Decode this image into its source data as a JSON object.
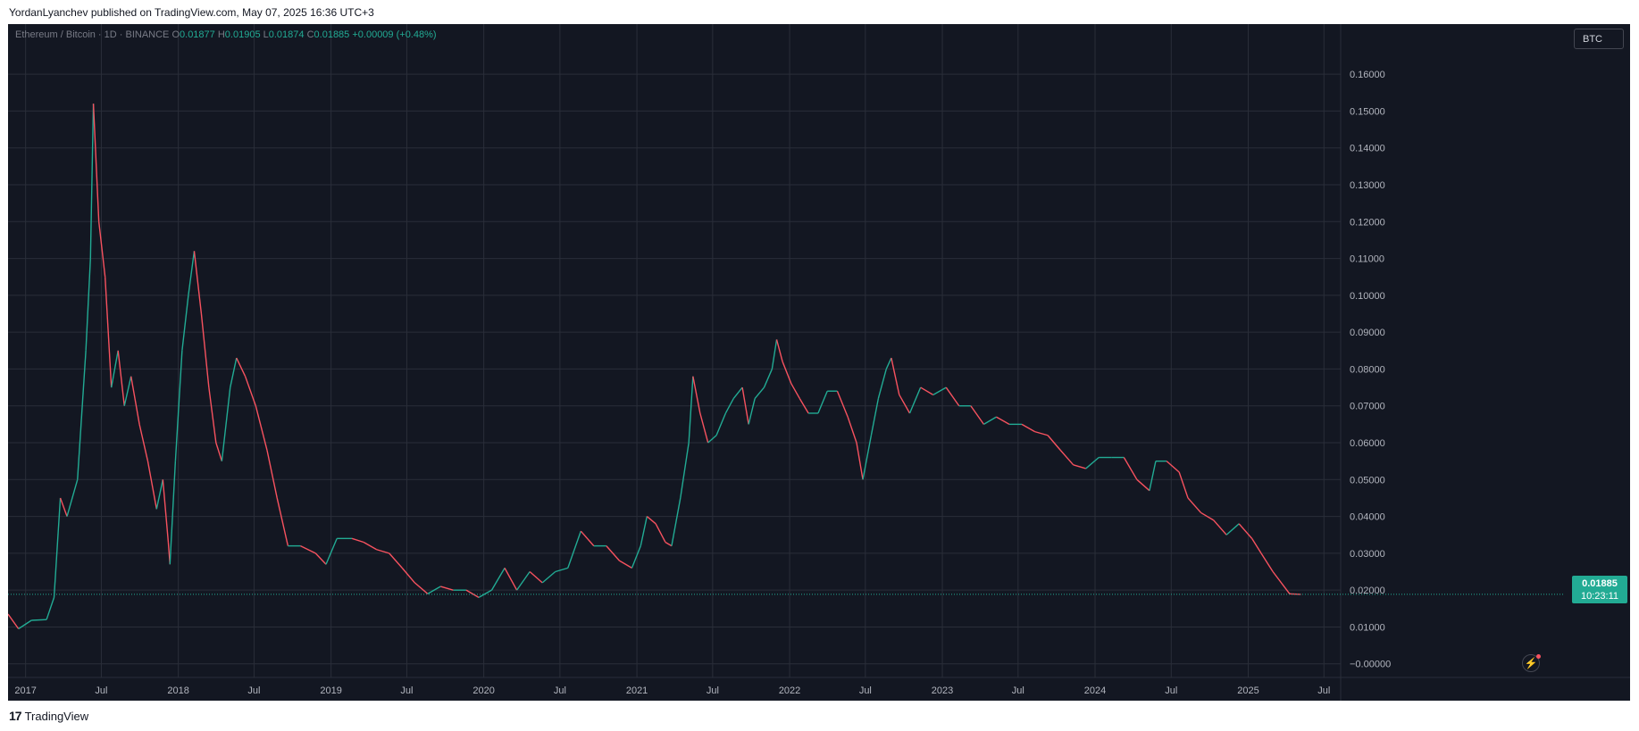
{
  "header": {
    "text": "YordanLyanchev published on TradingView.com, May 07, 2025 16:36 UTC+3"
  },
  "footer": {
    "logo": "17",
    "brand": "TradingView"
  },
  "legend": {
    "symbol": "Ethereum / Bitcoin · 1D · BINANCE",
    "o_label": "O",
    "o_value": "0.01877",
    "h_label": "H",
    "h_value": "0.01905",
    "l_label": "L",
    "l_value": "0.01874",
    "c_label": "C",
    "c_value": "0.01885",
    "change": "+0.00009 (+0.48%)"
  },
  "currency_badge": "BTC",
  "last_price": {
    "value": "0.01885",
    "countdown": "10:23:11"
  },
  "colors": {
    "background": "#131722",
    "grid": "#2a2e39",
    "axis_text": "#b2b5be",
    "up": "#22ab94",
    "down": "#f7525f",
    "last_price": "#22ab94"
  },
  "icons": {
    "bolt": "lightning-bolt-icon",
    "logo": "tradingview-logo-icon"
  },
  "chart_data": {
    "type": "line",
    "title": "Ethereum / Bitcoin · 1D · BINANCE",
    "x_tick_labels": [
      "2017",
      "Jul",
      "2018",
      "Jul",
      "2019",
      "Jul",
      "2020",
      "Jul",
      "2021",
      "Jul",
      "2022",
      "Jul",
      "2023",
      "Jul",
      "2024",
      "Jul",
      "2025",
      "Jul"
    ],
    "x_tick_dates": [
      "2017-01-01",
      "2017-07-01",
      "2018-01-01",
      "2018-07-01",
      "2019-01-01",
      "2019-07-01",
      "2020-01-01",
      "2020-07-01",
      "2021-01-01",
      "2021-07-01",
      "2022-01-01",
      "2022-07-01",
      "2023-01-01",
      "2023-07-01",
      "2024-01-01",
      "2024-07-01",
      "2025-01-01",
      "2025-07-01"
    ],
    "y_tick_labels": [
      "0.16000",
      "0.15000",
      "0.14000",
      "0.13000",
      "0.12000",
      "0.11000",
      "0.10000",
      "0.09000",
      "0.08000",
      "0.07000",
      "0.06000",
      "0.05000",
      "0.04000",
      "0.03000",
      "0.02000",
      "0.01000",
      "0.00000"
    ],
    "y_tick_values": [
      0.16,
      0.15,
      0.14,
      0.13,
      0.12,
      0.11,
      0.1,
      0.09,
      0.08,
      0.07,
      0.06,
      0.05,
      0.04,
      0.03,
      0.02,
      0.01,
      0.0
    ],
    "y_tick_prefix_last": "−",
    "ylim": [
      -0.0037,
      0.1736
    ],
    "xlim": [
      "2016-11-20",
      "2025-08-10"
    ],
    "grid": true,
    "series": [
      {
        "name": "ETHBTC",
        "points": [
          [
            "2016-11-20",
            0.0135
          ],
          [
            "2016-12-15",
            0.0095
          ],
          [
            "2017-01-15",
            0.0118
          ],
          [
            "2017-02-20",
            0.012
          ],
          [
            "2017-03-10",
            0.018
          ],
          [
            "2017-03-25",
            0.045
          ],
          [
            "2017-04-10",
            0.04
          ],
          [
            "2017-05-05",
            0.05
          ],
          [
            "2017-05-25",
            0.085
          ],
          [
            "2017-06-05",
            0.11
          ],
          [
            "2017-06-12",
            0.152
          ],
          [
            "2017-06-25",
            0.12
          ],
          [
            "2017-07-10",
            0.105
          ],
          [
            "2017-07-25",
            0.075
          ],
          [
            "2017-08-10",
            0.085
          ],
          [
            "2017-08-25",
            0.07
          ],
          [
            "2017-09-10",
            0.078
          ],
          [
            "2017-09-30",
            0.065
          ],
          [
            "2017-10-20",
            0.055
          ],
          [
            "2017-11-10",
            0.042
          ],
          [
            "2017-11-25",
            0.05
          ],
          [
            "2017-12-08",
            0.033
          ],
          [
            "2017-12-12",
            0.027
          ],
          [
            "2017-12-25",
            0.055
          ],
          [
            "2018-01-10",
            0.085
          ],
          [
            "2018-01-25",
            0.1
          ],
          [
            "2018-02-08",
            0.112
          ],
          [
            "2018-02-25",
            0.095
          ],
          [
            "2018-03-15",
            0.075
          ],
          [
            "2018-04-01",
            0.06
          ],
          [
            "2018-04-15",
            0.055
          ],
          [
            "2018-05-05",
            0.075
          ],
          [
            "2018-05-20",
            0.083
          ],
          [
            "2018-06-10",
            0.078
          ],
          [
            "2018-07-05",
            0.07
          ],
          [
            "2018-08-01",
            0.058
          ],
          [
            "2018-08-25",
            0.045
          ],
          [
            "2018-09-20",
            0.032
          ],
          [
            "2018-10-20",
            0.032
          ],
          [
            "2018-11-25",
            0.03
          ],
          [
            "2018-12-20",
            0.027
          ],
          [
            "2019-01-15",
            0.034
          ],
          [
            "2019-02-20",
            0.034
          ],
          [
            "2019-03-20",
            0.033
          ],
          [
            "2019-04-20",
            0.031
          ],
          [
            "2019-05-20",
            0.03
          ],
          [
            "2019-06-20",
            0.026
          ],
          [
            "2019-07-20",
            0.022
          ],
          [
            "2019-08-20",
            0.019
          ],
          [
            "2019-09-20",
            0.021
          ],
          [
            "2019-10-20",
            0.02
          ],
          [
            "2019-11-20",
            0.02
          ],
          [
            "2019-12-20",
            0.018
          ],
          [
            "2020-01-20",
            0.02
          ],
          [
            "2020-02-20",
            0.026
          ],
          [
            "2020-03-20",
            0.02
          ],
          [
            "2020-04-20",
            0.025
          ],
          [
            "2020-05-20",
            0.022
          ],
          [
            "2020-06-20",
            0.025
          ],
          [
            "2020-07-20",
            0.026
          ],
          [
            "2020-08-20",
            0.036
          ],
          [
            "2020-09-20",
            0.032
          ],
          [
            "2020-10-20",
            0.032
          ],
          [
            "2020-11-20",
            0.028
          ],
          [
            "2020-12-20",
            0.026
          ],
          [
            "2021-01-10",
            0.032
          ],
          [
            "2021-01-25",
            0.04
          ],
          [
            "2021-02-15",
            0.038
          ],
          [
            "2021-03-10",
            0.033
          ],
          [
            "2021-03-25",
            0.032
          ],
          [
            "2021-04-15",
            0.045
          ],
          [
            "2021-05-05",
            0.06
          ],
          [
            "2021-05-15",
            0.078
          ],
          [
            "2021-06-01",
            0.068
          ],
          [
            "2021-06-20",
            0.06
          ],
          [
            "2021-07-10",
            0.062
          ],
          [
            "2021-08-01",
            0.068
          ],
          [
            "2021-08-20",
            0.072
          ],
          [
            "2021-09-10",
            0.075
          ],
          [
            "2021-09-25",
            0.065
          ],
          [
            "2021-10-10",
            0.072
          ],
          [
            "2021-11-01",
            0.075
          ],
          [
            "2021-11-20",
            0.08
          ],
          [
            "2021-12-01",
            0.088
          ],
          [
            "2021-12-15",
            0.082
          ],
          [
            "2022-01-05",
            0.076
          ],
          [
            "2022-01-25",
            0.072
          ],
          [
            "2022-02-15",
            0.068
          ],
          [
            "2022-03-10",
            0.068
          ],
          [
            "2022-04-01",
            0.074
          ],
          [
            "2022-04-25",
            0.074
          ],
          [
            "2022-05-20",
            0.067
          ],
          [
            "2022-06-10",
            0.06
          ],
          [
            "2022-06-25",
            0.05
          ],
          [
            "2022-07-15",
            0.062
          ],
          [
            "2022-08-01",
            0.072
          ],
          [
            "2022-08-20",
            0.08
          ],
          [
            "2022-09-01",
            0.083
          ],
          [
            "2022-09-20",
            0.073
          ],
          [
            "2022-10-15",
            0.068
          ],
          [
            "2022-11-10",
            0.075
          ],
          [
            "2022-12-10",
            0.073
          ],
          [
            "2023-01-10",
            0.075
          ],
          [
            "2023-02-10",
            0.07
          ],
          [
            "2023-03-10",
            0.07
          ],
          [
            "2023-04-10",
            0.065
          ],
          [
            "2023-05-10",
            0.067
          ],
          [
            "2023-06-10",
            0.065
          ],
          [
            "2023-07-10",
            0.065
          ],
          [
            "2023-08-10",
            0.063
          ],
          [
            "2023-09-10",
            0.062
          ],
          [
            "2023-10-10",
            0.058
          ],
          [
            "2023-11-10",
            0.054
          ],
          [
            "2023-12-10",
            0.053
          ],
          [
            "2024-01-10",
            0.056
          ],
          [
            "2024-02-10",
            0.056
          ],
          [
            "2024-03-10",
            0.056
          ],
          [
            "2024-04-10",
            0.05
          ],
          [
            "2024-05-10",
            0.047
          ],
          [
            "2024-05-25",
            0.055
          ],
          [
            "2024-06-20",
            0.055
          ],
          [
            "2024-07-20",
            0.052
          ],
          [
            "2024-08-10",
            0.045
          ],
          [
            "2024-09-10",
            0.041
          ],
          [
            "2024-10-10",
            0.039
          ],
          [
            "2024-11-10",
            0.035
          ],
          [
            "2024-12-10",
            0.038
          ],
          [
            "2025-01-10",
            0.034
          ],
          [
            "2025-02-01",
            0.03
          ],
          [
            "2025-03-01",
            0.025
          ],
          [
            "2025-04-10",
            0.019
          ],
          [
            "2025-05-07",
            0.01885
          ]
        ]
      }
    ],
    "last_value": 0.01885
  }
}
